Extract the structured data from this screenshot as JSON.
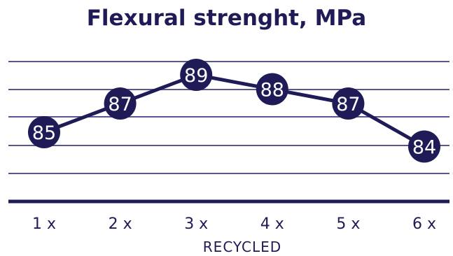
{
  "chart_data": {
    "type": "line",
    "title": "Flexural strenght, MPa",
    "xlabel": "RECYCLED",
    "ylabel": "",
    "categories": [
      "1 x",
      "2 x",
      "3 x",
      "4 x",
      "5 x",
      "6 x"
    ],
    "series": [
      {
        "values": [
          85,
          87,
          89,
          88,
          87,
          84
        ]
      }
    ],
    "data_labels": [
      "85",
      "87",
      "89",
      "88",
      "87",
      "84"
    ],
    "grid": true,
    "legend": "none",
    "colors": {
      "primary": "#1e1b57",
      "grid": "#5a5590",
      "background": "#ffffff",
      "label": "#ffffff"
    }
  }
}
